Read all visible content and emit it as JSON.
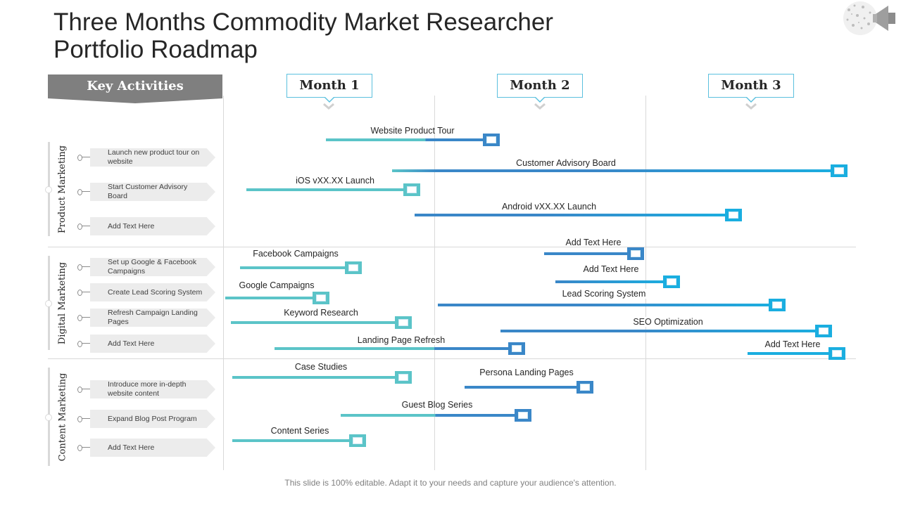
{
  "title": {
    "line1": "Three Months Commodity Market Researcher",
    "line2": "Portfolio Roadmap"
  },
  "key_activities_label": "Key Activities",
  "months": [
    "Month 1",
    "Month 2",
    "Month 3"
  ],
  "sections": [
    {
      "name": "Product Marketing",
      "activities": [
        "Launch new product tour on website",
        "Start Customer Advisory Board",
        "Add Text Here"
      ]
    },
    {
      "name": "Digital Marketing",
      "activities": [
        "Set up Google & Facebook Campaigns",
        "Create Lead Scoring System",
        "Refresh Campaign Landing Pages",
        "Add Text Here"
      ]
    },
    {
      "name": "Content Marketing",
      "activities": [
        "Introduce more in-depth website content",
        "Expand Blog Post Program",
        "Add Text Here"
      ]
    }
  ],
  "tasks": [
    "Website Product Tour",
    "Customer Advisory Board",
    "iOS vXX.XX  Launch",
    "Android vXX.XX  Launch",
    "Add Text Here",
    "Facebook Campaigns",
    "Add Text Here",
    "Google Campaigns",
    "Lead Scoring System",
    "Keyword Research",
    "SEO Optimization",
    "Landing Page Refresh",
    "Add Text Here",
    "Case Studies",
    "Persona Landing Pages",
    "Guest Blog Series",
    "Content Series"
  ],
  "footer": "This slide is 100% editable. Adapt it to your needs and capture your audience's attention.",
  "colors": {
    "teal": "#5bc4c8",
    "blue": "#3a87c8",
    "cyan": "#1aaee0",
    "gray_header": "#7f7f7f"
  }
}
